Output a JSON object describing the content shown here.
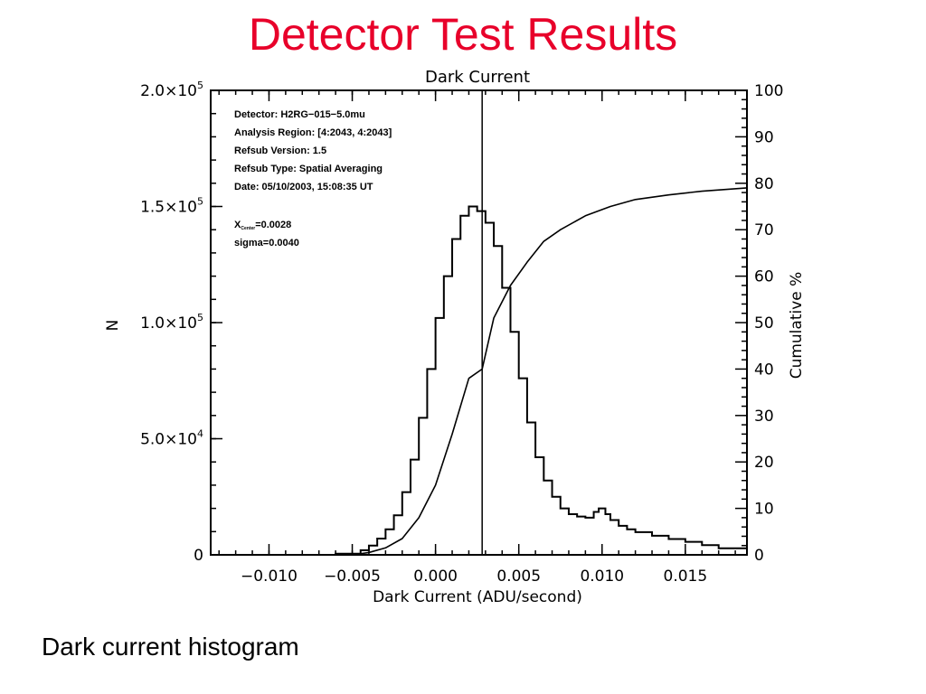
{
  "slide": {
    "title": "Detector Test Results",
    "caption": "Dark current histogram"
  },
  "chart_data": {
    "type": "line",
    "title": "Dark Current",
    "xlabel": "Dark Current (ADU/second)",
    "ylabel": "N",
    "y2label": "Cumulative %",
    "xlim": [
      -0.0135,
      0.0187
    ],
    "ylim": [
      0,
      200000
    ],
    "y2lim": [
      0,
      100
    ],
    "x_ticks": [
      -0.01,
      -0.005,
      0.0,
      0.005,
      0.01,
      0.015
    ],
    "x_tick_labels": [
      "−0.010",
      "−0.005",
      "0.000",
      "0.005",
      "0.010",
      "0.015"
    ],
    "y_ticks": [
      {
        "value": 0,
        "mantissa": "0",
        "exponent": ""
      },
      {
        "value": 50000,
        "mantissa": "5.0×10",
        "exponent": "4"
      },
      {
        "value": 100000,
        "mantissa": "1.0×10",
        "exponent": "5"
      },
      {
        "value": 150000,
        "mantissa": "1.5×10",
        "exponent": "5"
      },
      {
        "value": 200000,
        "mantissa": "2.0×10",
        "exponent": "5"
      }
    ],
    "y2_ticks": [
      0,
      10,
      20,
      30,
      40,
      50,
      60,
      70,
      80,
      90,
      100
    ],
    "grid": false,
    "vertical_line_x": 0.0028,
    "annotations": {
      "detector": "Detector: H2RG−015−5.0mu",
      "region": "Analysis Region: [4:2043, 4:2043]",
      "refsub_version": "Refsub Version: 1.5",
      "refsub_type": "Refsub Type: Spatial Averaging",
      "date": "Date: 05/10/2003, 15:08:35 UT",
      "xcenter_prefix": "X",
      "xcenter_sub": "Center",
      "xcenter_value": "=0.0028",
      "sigma": "sigma=0.0040"
    },
    "series": [
      {
        "name": "histogram",
        "axis": "left",
        "style": "step",
        "x": [
          -0.0135,
          -0.006,
          -0.0045,
          -0.004,
          -0.0035,
          -0.003,
          -0.0025,
          -0.002,
          -0.0015,
          -0.001,
          -0.0005,
          0.0,
          0.0005,
          0.001,
          0.0015,
          0.002,
          0.0025,
          0.003,
          0.0035,
          0.004,
          0.0045,
          0.005,
          0.0055,
          0.006,
          0.0065,
          0.007,
          0.0075,
          0.008,
          0.0085,
          0.009,
          0.0095,
          0.0098,
          0.0102,
          0.0105,
          0.011,
          0.0115,
          0.012,
          0.013,
          0.014,
          0.015,
          0.016,
          0.017,
          0.0187
        ],
        "y": [
          0,
          500,
          2000,
          4000,
          7000,
          11000,
          17000,
          27000,
          41000,
          59000,
          80000,
          102000,
          120000,
          136000,
          146000,
          150000,
          148000,
          143000,
          133000,
          115000,
          96000,
          76000,
          57000,
          42000,
          32000,
          25000,
          20000,
          17500,
          16500,
          16000,
          18500,
          20000,
          17500,
          15000,
          12500,
          11000,
          9800,
          8200,
          6800,
          5600,
          4200,
          2800,
          1500
        ]
      },
      {
        "name": "cumulative",
        "axis": "right",
        "style": "line",
        "x": [
          -0.0135,
          -0.005,
          -0.004,
          -0.003,
          -0.002,
          -0.001,
          0.0,
          0.001,
          0.002,
          0.0028,
          0.0035,
          0.0045,
          0.0055,
          0.0065,
          0.0075,
          0.009,
          0.0105,
          0.012,
          0.014,
          0.016,
          0.0187
        ],
        "y": [
          0,
          0,
          0.5,
          1.5,
          3.5,
          8,
          15,
          26,
          38,
          40,
          51,
          58,
          63,
          67.5,
          70,
          73,
          75,
          76.5,
          77.5,
          78.3,
          79
        ]
      }
    ]
  }
}
